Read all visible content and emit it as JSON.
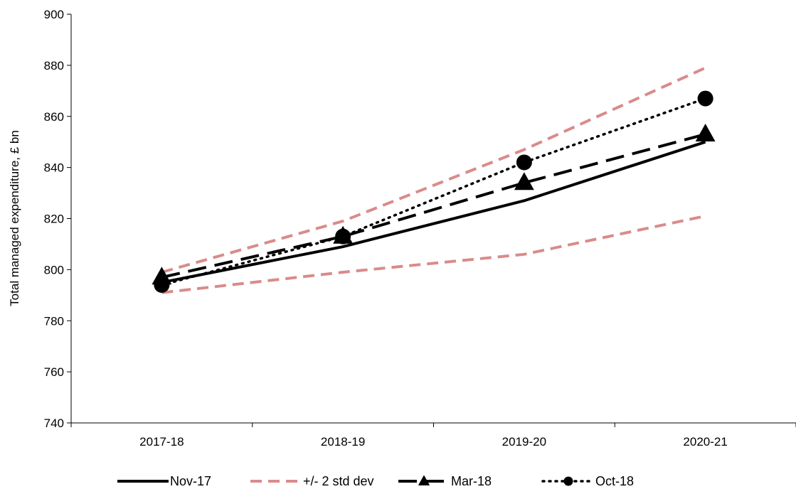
{
  "chart_data": {
    "type": "line",
    "title": "",
    "xlabel": "",
    "ylabel": "Total managed expenditure, £ bn",
    "categories": [
      "2017-18",
      "2018-19",
      "2019-20",
      "2020-21"
    ],
    "ylim": [
      740,
      900
    ],
    "yticks": [
      740,
      760,
      780,
      800,
      820,
      840,
      860,
      880,
      900
    ],
    "grid": false,
    "legend_position": "bottom",
    "series": [
      {
        "name": "Nov-17",
        "values": [
          795,
          809,
          827,
          850
        ],
        "color": "#000000",
        "style": "solid",
        "marker": "none"
      },
      {
        "name": "+/- 2 std dev",
        "values": [
          799,
          819,
          847,
          879
        ],
        "color": "#d98b8b",
        "style": "dashed",
        "marker": "none",
        "legend": true
      },
      {
        "name": "",
        "values": [
          791,
          799,
          806,
          821
        ],
        "color": "#d98b8b",
        "style": "dashed",
        "marker": "none",
        "legend": false
      },
      {
        "name": "Mar-18",
        "values": [
          797,
          813,
          834,
          853
        ],
        "color": "#000000",
        "style": "longdash",
        "marker": "triangle"
      },
      {
        "name": "Oct-18",
        "values": [
          794,
          813,
          842,
          867
        ],
        "color": "#000000",
        "style": "dotted",
        "marker": "circle"
      }
    ]
  }
}
